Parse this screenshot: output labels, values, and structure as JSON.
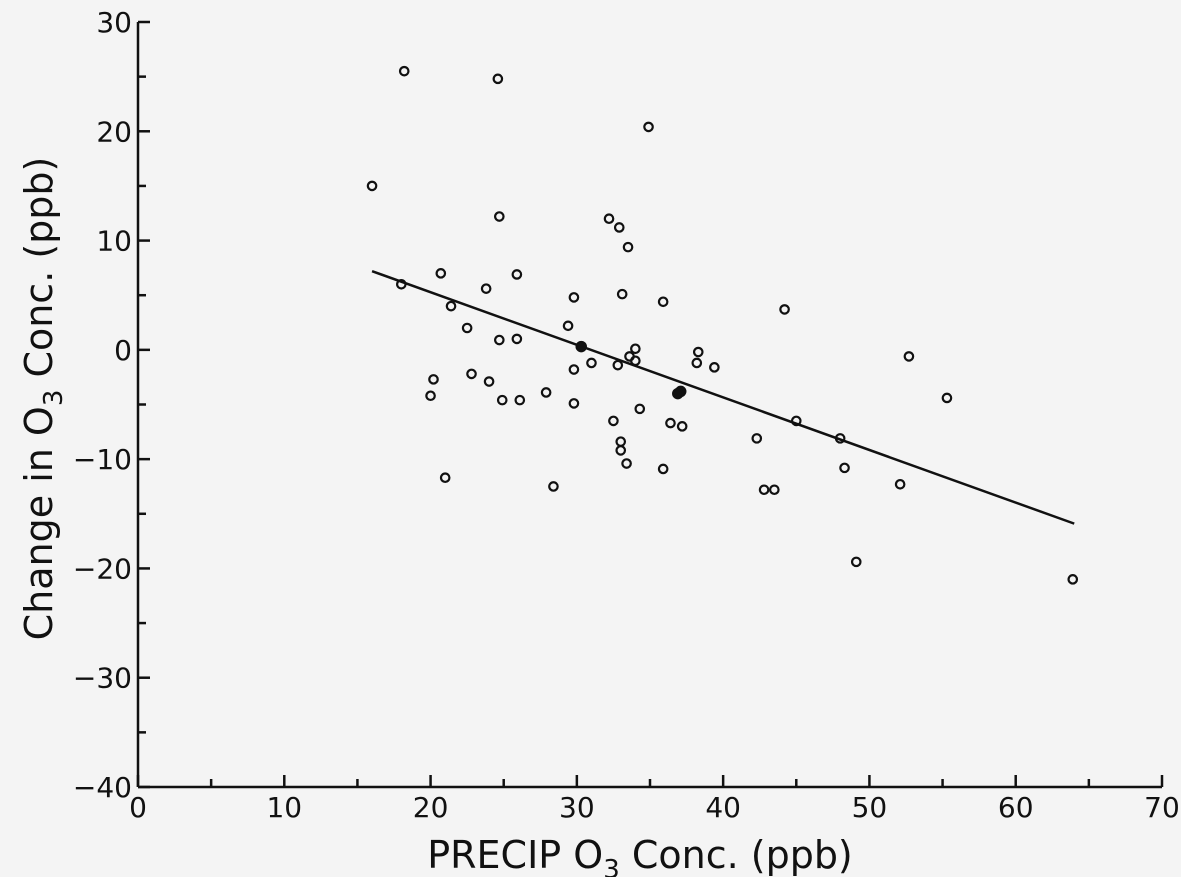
{
  "chart_data": {
    "type": "scatter",
    "title": "",
    "xlabel": "PRECIP O3 Conc. (ppb)",
    "ylabel": "Change in O3 Conc. (ppb)",
    "xlabel_parts": {
      "pre": "PRECIP  O",
      "sub": "3",
      "post": "  Conc.  (ppb)"
    },
    "ylabel_parts": {
      "pre": "Change  in  O",
      "sub": "3",
      "post": "  Conc.  (ppb)"
    },
    "xlim": [
      0,
      70
    ],
    "ylim": [
      -40,
      30
    ],
    "xticks": [
      0,
      10,
      20,
      30,
      40,
      50,
      60,
      70
    ],
    "yticks": [
      30,
      20,
      10,
      0,
      -10,
      -20,
      -30,
      -40
    ],
    "ytick_labels": [
      "30",
      "20",
      "10",
      "0",
      "−10",
      "−20",
      "−30",
      "−40"
    ],
    "grid": false,
    "series": [
      {
        "points": [
          [
            16.0,
            15.0
          ],
          [
            18.2,
            25.5
          ],
          [
            18.0,
            6.0
          ],
          [
            20.0,
            -4.2
          ],
          [
            20.2,
            -2.7
          ],
          [
            20.7,
            7.0
          ],
          [
            21.0,
            -11.7
          ],
          [
            21.4,
            4.0
          ],
          [
            22.5,
            2.0
          ],
          [
            22.8,
            -2.2
          ],
          [
            23.8,
            5.6
          ],
          [
            24.0,
            -2.9
          ],
          [
            24.6,
            24.8
          ],
          [
            24.7,
            12.2
          ],
          [
            24.7,
            0.9
          ],
          [
            24.9,
            -4.6
          ],
          [
            25.9,
            6.9
          ],
          [
            25.9,
            1.0
          ],
          [
            26.1,
            -4.6
          ],
          [
            27.9,
            -3.9
          ],
          [
            28.4,
            -12.5
          ],
          [
            29.4,
            2.2
          ],
          [
            29.8,
            4.8
          ],
          [
            29.8,
            -1.8
          ],
          [
            29.8,
            -4.9
          ],
          [
            32.2,
            12.0
          ],
          [
            32.5,
            -6.5
          ],
          [
            32.8,
            -1.4
          ],
          [
            32.9,
            11.2
          ],
          [
            33.0,
            -8.4
          ],
          [
            33.0,
            -9.2
          ],
          [
            33.1,
            5.1
          ],
          [
            33.4,
            -10.4
          ],
          [
            33.5,
            9.4
          ],
          [
            33.6,
            -0.6
          ],
          [
            34.0,
            -1.0
          ],
          [
            34.0,
            0.1
          ],
          [
            34.3,
            -5.4
          ],
          [
            34.9,
            20.4
          ],
          [
            35.9,
            4.4
          ],
          [
            35.9,
            -10.9
          ],
          [
            36.4,
            -6.7
          ],
          [
            37.2,
            -7.0
          ],
          [
            38.2,
            -1.2
          ],
          [
            38.3,
            -0.2
          ],
          [
            39.4,
            -1.6
          ],
          [
            42.3,
            -8.1
          ],
          [
            42.8,
            -12.8
          ],
          [
            43.5,
            -12.8
          ],
          [
            44.2,
            3.7
          ],
          [
            45.0,
            -6.5
          ],
          [
            48.0,
            -8.1
          ],
          [
            48.3,
            -10.8
          ],
          [
            49.1,
            -19.4
          ],
          [
            52.1,
            -12.3
          ],
          [
            52.7,
            -0.6
          ],
          [
            55.3,
            -4.4
          ],
          [
            63.9,
            -21.0
          ],
          [
            31.0,
            -1.2
          ]
        ],
        "filled_points": [
          [
            30.3,
            0.3
          ],
          [
            37.1,
            -3.8
          ],
          [
            36.9,
            -4.0
          ]
        ]
      }
    ],
    "trendline": {
      "x": [
        16.0,
        64.0
      ],
      "y": [
        7.2,
        -15.9
      ]
    }
  }
}
